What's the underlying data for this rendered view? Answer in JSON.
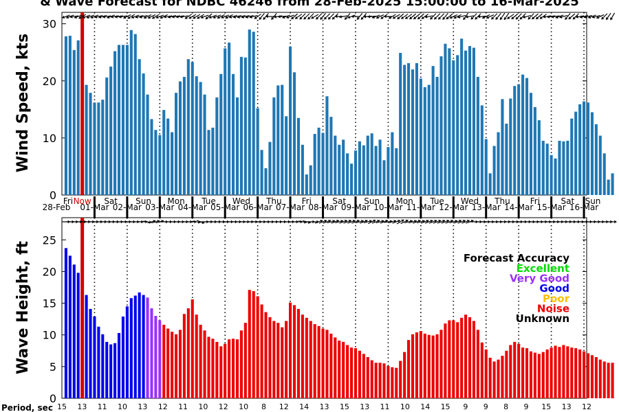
{
  "title": "& Wave Forecast for NDBC 46246 from 28-Feb-2025 15:00:00 to 16-Mar-2025",
  "now_label": "Now",
  "period_label": "Period, sec",
  "colors": {
    "wind_bar": "#1f77b4",
    "now_line": "#d40000",
    "excellent": "#00dd00",
    "very_good": "#9b30ff",
    "good": "#0000ee",
    "poor": "#ffc000",
    "noise": "#ee0000",
    "unknown": "#000000"
  },
  "legend": {
    "title": "Forecast Accuracy",
    "entries": [
      {
        "label": "Excellent",
        "color": "#00dd00"
      },
      {
        "label": "Very Good",
        "color": "#9b30ff"
      },
      {
        "label": "Good",
        "color": "#0000ee"
      },
      {
        "label": "Poor",
        "color": "#ffc000"
      },
      {
        "label": "Noise",
        "color": "#ee0000"
      },
      {
        "label": "Unknown",
        "color": "#000000"
      }
    ]
  },
  "days": [
    {
      "dow": "Fri",
      "date": "28-Feb"
    },
    {
      "dow": "Sat",
      "date": "01-Mar"
    },
    {
      "dow": "Sun",
      "date": "02-Mar"
    },
    {
      "dow": "Mon",
      "date": "03-Mar"
    },
    {
      "dow": "Tue",
      "date": "04-Mar"
    },
    {
      "dow": "Wed",
      "date": "05-Mar"
    },
    {
      "dow": "Thu",
      "date": "06-Mar"
    },
    {
      "dow": "Fri",
      "date": "07-Mar"
    },
    {
      "dow": "Sat",
      "date": "08-Mar"
    },
    {
      "dow": "Sun",
      "date": "09-Mar"
    },
    {
      "dow": "Mon",
      "date": "10-Mar"
    },
    {
      "dow": "Tue",
      "date": "11-Mar"
    },
    {
      "dow": "Wed",
      "date": "12-Mar"
    },
    {
      "dow": "Thu",
      "date": "13-Mar"
    },
    {
      "dow": "Fri",
      "date": "14-Mar"
    },
    {
      "dow": "Sat",
      "date": "15-Mar"
    },
    {
      "dow": "Sun",
      "date": "16-Mar"
    }
  ],
  "periods": [
    "15",
    "13",
    "11",
    "10",
    "13",
    "12",
    "11",
    "10",
    "12",
    "10",
    "8",
    "12",
    "14",
    "13",
    "15",
    "13",
    "11",
    "10",
    "14",
    "15",
    "9",
    "9",
    "8",
    "9",
    "15",
    "13",
    "12"
  ],
  "chart_data": [
    {
      "type": "bar",
      "ylabel": "Wind Speed, kts",
      "ylim": [
        0,
        32
      ],
      "yticks": [
        0,
        10,
        20,
        30
      ],
      "x_unit": "hours from 28-Feb 00:00 (3-hourly)",
      "grid": "dotted day separators",
      "values": [
        27.8,
        27.9,
        25.4,
        27.1,
        24.4,
        19.3,
        17.9,
        16.2,
        16.2,
        16.7,
        20.6,
        22.5,
        25.2,
        26.3,
        26.3,
        26.3,
        28.9,
        28.2,
        23.8,
        21.3,
        17.6,
        13.3,
        11.4,
        10.5,
        14.9,
        13.4,
        11.0,
        17.9,
        19.9,
        20.7,
        23.8,
        23.3,
        20.8,
        19.8,
        17.6,
        11.4,
        11.8,
        17.1,
        21.2,
        25.7,
        26.7,
        21.2,
        17.1,
        24.2,
        24.1,
        29.0,
        28.6,
        15.2,
        7.9,
        4.7,
        9.3,
        17.1,
        19.2,
        19.3,
        13.8,
        26.0,
        21.5,
        13.5,
        8.8,
        3.6,
        5.2,
        10.7,
        11.8,
        10.9,
        17.3,
        13.7,
        10.4,
        8.8,
        9.7,
        7.3,
        5.5,
        7.8,
        9.4,
        8.7,
        10.4,
        10.8,
        8.6,
        9.7,
        6.1,
        8.4,
        11.0,
        8.2,
        24.9,
        22.8,
        23.1,
        22.0,
        23.1,
        20.4,
        18.9,
        19.3,
        22.6,
        20.7,
        24.3,
        26.5,
        25.7,
        23.6,
        24.5,
        27.4,
        25.3,
        26.1,
        25.8,
        20.7,
        15.7,
        9.8,
        3.8,
        8.6,
        11.0,
        16.8,
        12.5,
        16.9,
        19.1,
        19.4,
        21.1,
        20.5,
        17.9,
        15.4,
        13.1,
        9.5,
        9.0,
        7.0,
        6.4,
        9.5,
        9.4,
        9.5,
        13.4,
        14.6,
        15.9,
        16.4,
        16.2,
        14.5,
        12.4,
        10.4,
        7.3,
        2.7,
        3.8
      ],
      "wind_dirs": [
        160,
        160,
        170,
        160,
        150,
        160,
        160,
        160,
        165,
        165,
        170,
        160,
        170,
        170,
        170,
        155,
        150,
        160,
        165,
        165,
        155,
        155,
        150,
        160,
        155,
        170,
        165,
        170,
        170,
        170,
        145,
        150,
        150,
        150,
        160,
        140,
        160,
        160,
        155,
        160,
        155,
        165,
        165,
        165,
        165,
        165,
        165,
        145,
        130,
        130,
        180,
        130,
        170,
        175,
        160,
        160,
        140,
        145,
        135,
        135,
        135,
        150,
        135,
        130,
        135,
        135,
        135,
        180,
        170,
        130,
        160,
        180,
        130,
        130,
        175,
        175,
        160,
        155,
        145,
        180,
        150,
        150,
        140,
        145,
        145,
        140,
        140,
        140,
        145,
        170,
        135,
        135,
        135,
        130,
        140,
        155,
        155,
        165,
        125,
        170,
        135,
        135,
        175,
        155,
        155,
        135,
        130,
        125,
        125,
        145,
        140,
        135,
        135,
        165,
        135,
        140,
        140,
        145,
        170,
        170,
        170,
        160,
        165,
        130,
        140,
        135,
        170,
        165,
        165,
        160,
        165,
        155,
        135,
        125,
        120
      ]
    },
    {
      "type": "bar",
      "ylabel": "Wave Height, ft",
      "ylim": [
        0,
        28.5
      ],
      "yticks": [
        0,
        5,
        10,
        15,
        20,
        25
      ],
      "x_unit": "hours from 28-Feb 00:00 (3-hourly)",
      "grid": "dotted day separators",
      "values": [
        23.7,
        22.5,
        21.1,
        19.8,
        17.9,
        16.3,
        14.1,
        12.9,
        11.3,
        10.1,
        8.9,
        8.5,
        8.7,
        10.3,
        12.9,
        14.5,
        15.8,
        16.2,
        16.7,
        16.3,
        15.9,
        14.2,
        13.0,
        12.3,
        11.6,
        11.0,
        10.5,
        10.1,
        10.8,
        13.3,
        14.2,
        15.6,
        13.2,
        11.6,
        10.7,
        9.7,
        9.4,
        8.9,
        8.2,
        8.6,
        9.3,
        9.4,
        9.3,
        10.7,
        11.9,
        17.1,
        16.9,
        16.1,
        14.8,
        13.6,
        12.8,
        12.2,
        11.9,
        11.2,
        12.2,
        15.1,
        14.7,
        14.1,
        13.2,
        12.7,
        12.2,
        11.7,
        11.4,
        11.0,
        10.8,
        10.2,
        9.6,
        9.1,
        8.9,
        8.4,
        8.0,
        7.9,
        7.5,
        7.0,
        6.5,
        6.0,
        5.6,
        5.6,
        5.5,
        5.1,
        4.9,
        4.8,
        5.9,
        7.3,
        9.2,
        10.1,
        10.4,
        10.6,
        10.2,
        10.0,
        9.9,
        10.1,
        10.8,
        11.8,
        12.3,
        12.3,
        12.0,
        12.7,
        13.2,
        12.8,
        12.2,
        10.8,
        8.8,
        7.7,
        6.4,
        5.8,
        6.1,
        6.7,
        7.5,
        8.4,
        8.9,
        8.6,
        8.0,
        7.9,
        7.4,
        7.2,
        7.0,
        7.3,
        7.7,
        8.0,
        8.3,
        8.1,
        8.4,
        8.2,
        8.0,
        7.9,
        7.7,
        7.4,
        7.1,
        6.8,
        6.5,
        6.1,
        5.8,
        5.6,
        5.6
      ],
      "accuracy": [
        "Good",
        "Good",
        "Good",
        "Good",
        "Good",
        "Good",
        "Good",
        "Good",
        "Good",
        "Good",
        "Good",
        "Good",
        "Good",
        "Good",
        "Good",
        "Good",
        "Good",
        "Good",
        "Good",
        "Good",
        "Very Good",
        "Very Good",
        "Very Good",
        "Very Good",
        "Noise"
      ],
      "accuracy_default": "Noise",
      "wave_dirs": [
        0,
        0,
        0,
        0,
        0,
        0,
        0,
        0,
        0,
        0,
        0,
        0,
        0,
        0,
        0,
        0,
        0,
        0,
        0,
        0,
        10,
        -15,
        -15,
        -15,
        0,
        0,
        0,
        0,
        0,
        0,
        0,
        0,
        10,
        20,
        0,
        0,
        0,
        0,
        0,
        0,
        0,
        0,
        0,
        0,
        0,
        0,
        0,
        0,
        0,
        0,
        0,
        0,
        0,
        0,
        0,
        0,
        0,
        0,
        10,
        15,
        0,
        0,
        -20,
        -20,
        -20,
        -15,
        -20,
        -15,
        -20,
        -20,
        -20,
        -20,
        -15,
        -20,
        -15,
        -25,
        -20,
        -15,
        -20,
        -10,
        -15,
        -20,
        -30,
        -25,
        -15,
        -15,
        -20,
        -15,
        -20,
        -20,
        -20,
        -20,
        -20,
        -20,
        -20,
        -15,
        -20,
        -20,
        -20,
        -20,
        0,
        0,
        0,
        0,
        0,
        0,
        0,
        0,
        0,
        0,
        0,
        0,
        0,
        0,
        0,
        0,
        0,
        0,
        0,
        0,
        0,
        0,
        0,
        0,
        0,
        0,
        0,
        0,
        0,
        0,
        0,
        0,
        0,
        0,
        0
      ]
    }
  ]
}
